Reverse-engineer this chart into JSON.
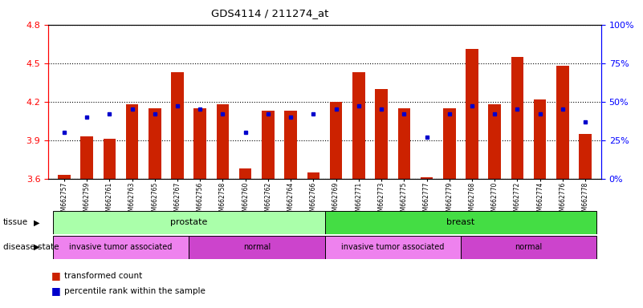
{
  "title": "GDS4114 / 211274_at",
  "samples": [
    "GSM662757",
    "GSM662759",
    "GSM662761",
    "GSM662763",
    "GSM662765",
    "GSM662767",
    "GSM662756",
    "GSM662758",
    "GSM662760",
    "GSM662762",
    "GSM662764",
    "GSM662766",
    "GSM662769",
    "GSM662771",
    "GSM662773",
    "GSM662775",
    "GSM662777",
    "GSM662779",
    "GSM662768",
    "GSM662770",
    "GSM662772",
    "GSM662774",
    "GSM662776",
    "GSM662778"
  ],
  "transformed_count": [
    3.63,
    3.93,
    3.91,
    4.18,
    4.15,
    4.43,
    4.15,
    4.18,
    3.68,
    4.13,
    4.13,
    3.65,
    4.2,
    4.43,
    4.3,
    4.15,
    3.61,
    4.15,
    4.61,
    4.18,
    4.55,
    4.22,
    4.48,
    3.95
  ],
  "percentile_rank": [
    30,
    40,
    42,
    45,
    42,
    47,
    45,
    42,
    30,
    42,
    40,
    42,
    45,
    47,
    45,
    42,
    27,
    42,
    47,
    42,
    45,
    42,
    45,
    37
  ],
  "tissue_groups": [
    {
      "label": "prostate",
      "start": 0,
      "end": 12,
      "color": "#AAFFAA"
    },
    {
      "label": "breast",
      "start": 12,
      "end": 24,
      "color": "#44DD44"
    }
  ],
  "disease_state_groups": [
    {
      "label": "invasive tumor associated",
      "start": 0,
      "end": 6,
      "color": "#EE82EE"
    },
    {
      "label": "normal",
      "start": 6,
      "end": 12,
      "color": "#CC44CC"
    },
    {
      "label": "invasive tumor associated",
      "start": 12,
      "end": 18,
      "color": "#EE82EE"
    },
    {
      "label": "normal",
      "start": 18,
      "end": 24,
      "color": "#CC44CC"
    }
  ],
  "ylim_left": [
    3.6,
    4.8
  ],
  "ylim_right": [
    0,
    100
  ],
  "yticks_left": [
    3.6,
    3.9,
    4.2,
    4.5,
    4.8
  ],
  "yticks_right": [
    0,
    25,
    50,
    75,
    100
  ],
  "bar_color": "#CC2200",
  "dot_color": "#0000CC",
  "bar_width": 0.55
}
